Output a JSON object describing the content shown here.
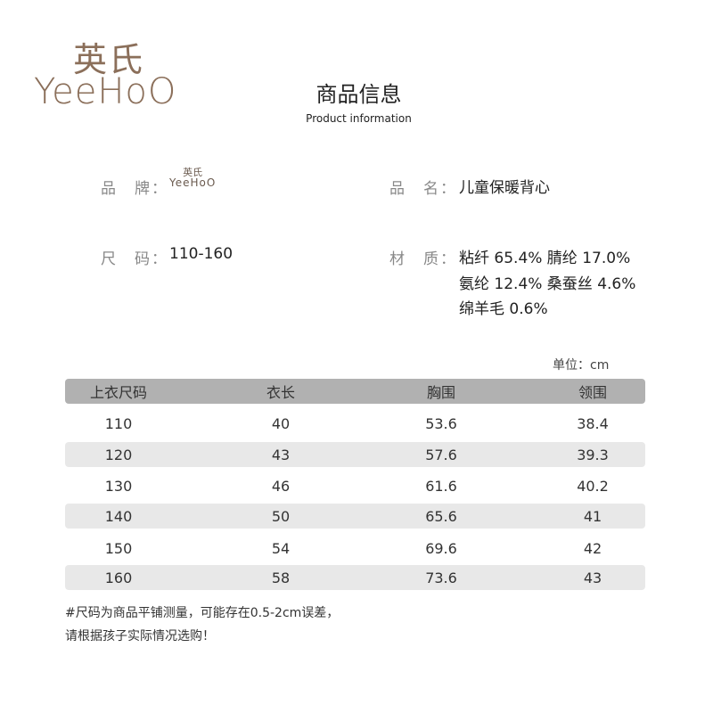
{
  "brand_logo": {
    "cn": "英氏",
    "en": "YeeHoO",
    "color": "#8b6f5a"
  },
  "header": {
    "title": "商品信息",
    "subtitle": "Product information"
  },
  "info": {
    "brand_label": "品　牌：",
    "name_label": "品　名：",
    "name_value": "儿童保暖背心",
    "size_label": "尺　码：",
    "size_value": "110-160",
    "material_label": "材　质：",
    "material_lines": [
      "粘纤 65.4% 腈纶 17.0%",
      "氨纶 12.4% 桑蚕丝 4.6%",
      "绵羊毛 0.6%"
    ]
  },
  "table": {
    "unit": "单位：cm",
    "headers": [
      "上衣尺码",
      "衣长",
      "胸围",
      "领围"
    ],
    "rows": [
      [
        "110",
        "40",
        "53.6",
        "38.4"
      ],
      [
        "120",
        "43",
        "57.6",
        "39.3"
      ],
      [
        "130",
        "46",
        "61.6",
        "40.2"
      ],
      [
        "140",
        "50",
        "65.6",
        "41"
      ],
      [
        "150",
        "54",
        "69.6",
        "42"
      ],
      [
        "160",
        "58",
        "73.6",
        "43"
      ]
    ],
    "header_color": "#b1b1b1",
    "alt_row_color": "#e8e8e8"
  },
  "notes": [
    "#尺码为商品平铺测量，可能存在0.5-2cm误差，",
    "请根据孩子实际情况选购！"
  ]
}
